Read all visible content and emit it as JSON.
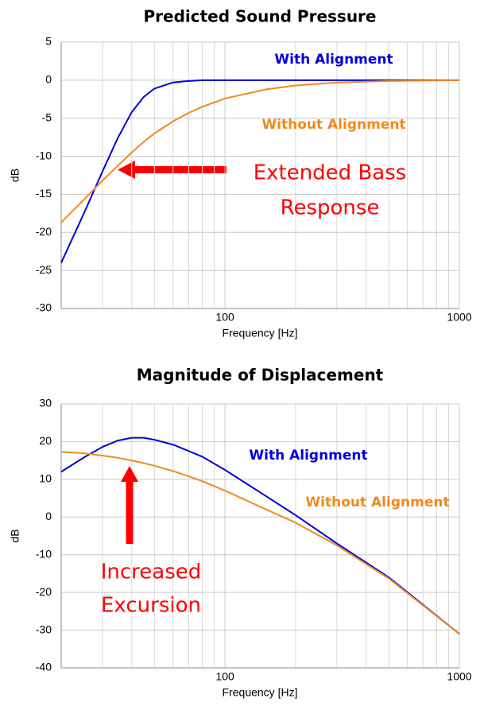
{
  "chart_data": [
    {
      "type": "line",
      "title": "Predicted Sound Pressure",
      "xlabel": "Frequency [Hz]",
      "ylabel": "dB",
      "xscale": "log",
      "xlim": [
        20,
        1000
      ],
      "xticks": [
        100,
        1000
      ],
      "xminorticks": [
        20,
        30,
        40,
        50,
        60,
        70,
        80,
        90,
        200,
        300,
        400,
        500,
        600,
        700,
        800,
        900
      ],
      "ylim": [
        -30,
        5
      ],
      "yticks": [
        -30,
        -25,
        -20,
        -15,
        -10,
        -5,
        0,
        5
      ],
      "grid": true,
      "x": [
        20,
        25,
        30,
        35,
        40,
        45,
        50,
        60,
        70,
        80,
        100,
        150,
        200,
        300,
        500,
        1000
      ],
      "series": [
        {
          "name": "With Alignment",
          "color": "#0000dd",
          "values": [
            -24,
            -17.5,
            -12,
            -7.5,
            -4.2,
            -2.2,
            -1.1,
            -0.3,
            -0.1,
            0,
            0,
            0,
            0,
            0,
            0,
            0
          ]
        },
        {
          "name": "Without Alignment",
          "color": "#f08a1c",
          "values": [
            -18.7,
            -15.7,
            -13.2,
            -11.2,
            -9.5,
            -8.1,
            -7,
            -5.4,
            -4.3,
            -3.5,
            -2.4,
            -1.2,
            -0.7,
            -0.3,
            -0.1,
            0
          ]
        }
      ],
      "annotations": [
        "Extended Bass",
        "Response"
      ],
      "annotation_color": "#ff0000"
    },
    {
      "type": "line",
      "title": "Magnitude of Displacement",
      "xlabel": "Frequency [Hz]",
      "ylabel": "dB",
      "xscale": "log",
      "xlim": [
        20,
        1000
      ],
      "xticks": [
        100,
        1000
      ],
      "xminorticks": [
        20,
        30,
        40,
        50,
        60,
        70,
        80,
        90,
        200,
        300,
        400,
        500,
        600,
        700,
        800,
        900
      ],
      "ylim": [
        -40,
        30
      ],
      "yticks": [
        -40,
        -30,
        -20,
        -10,
        0,
        10,
        20,
        30
      ],
      "grid": true,
      "x": [
        20,
        25,
        30,
        35,
        40,
        45,
        50,
        60,
        70,
        80,
        100,
        150,
        200,
        300,
        500,
        1000
      ],
      "series": [
        {
          "name": "With Alignment",
          "color": "#0000dd",
          "values": [
            12,
            15.8,
            18.6,
            20.3,
            21,
            21,
            20.5,
            19.2,
            17.5,
            16,
            12.5,
            5.5,
            0.5,
            -7,
            -16,
            -31
          ]
        },
        {
          "name": "Without Alignment",
          "color": "#f08a1c",
          "values": [
            17.3,
            16.9,
            16.3,
            15.7,
            15,
            14.3,
            13.6,
            12.2,
            10.8,
            9.5,
            7,
            2,
            -1.5,
            -7.5,
            -16.3,
            -31
          ]
        }
      ],
      "annotations": [
        "Increased",
        "Excursion"
      ],
      "annotation_color": "#ff0000"
    }
  ]
}
